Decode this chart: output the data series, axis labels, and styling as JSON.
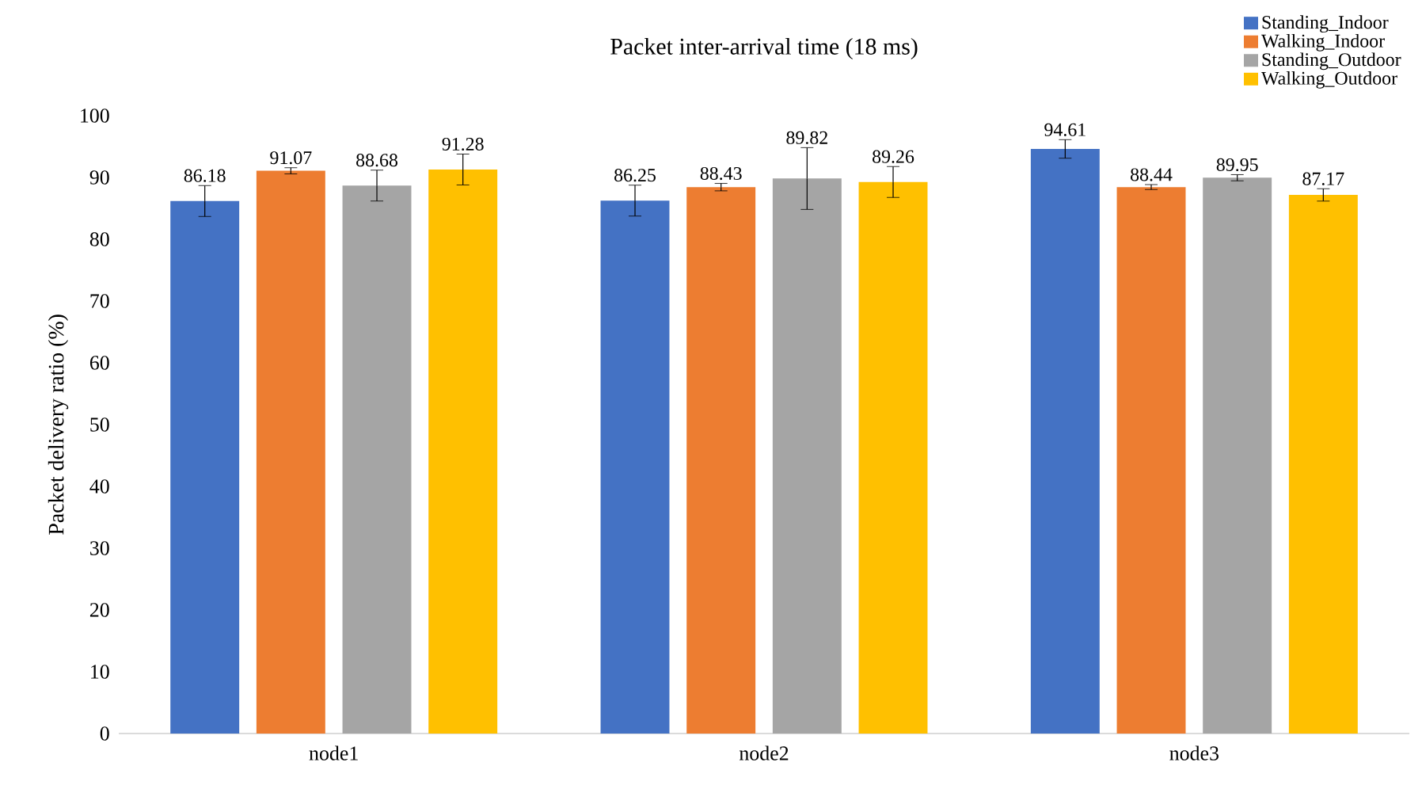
{
  "chart_data": {
    "type": "bar",
    "title": "Packet inter-arrival time (18 ms)",
    "ylabel": "Packet delivery ratio (%)",
    "categories": [
      "node1",
      "node2",
      "node3"
    ],
    "series": [
      {
        "name": "Standing_Indoor",
        "color": "#4472c4",
        "values": [
          86.18,
          86.25,
          94.61
        ],
        "errors": [
          2.5,
          2.5,
          1.5
        ]
      },
      {
        "name": "Walking_Indoor",
        "color": "#ed7d31",
        "values": [
          91.07,
          88.43,
          88.44
        ],
        "errors": [
          0.5,
          0.6,
          0.4
        ]
      },
      {
        "name": "Standing_Outdoor",
        "color": "#a5a5a5",
        "values": [
          88.68,
          89.82,
          89.95
        ],
        "errors": [
          2.5,
          5,
          0.5
        ]
      },
      {
        "name": "Walking_Outdoor",
        "color": "#ffc000",
        "values": [
          91.28,
          89.26,
          87.17
        ],
        "errors": [
          2.5,
          2.5,
          1
        ]
      }
    ],
    "ylim": [
      0,
      100
    ],
    "yticks": [
      0,
      10,
      20,
      30,
      40,
      50,
      60,
      70,
      80,
      90,
      100
    ],
    "data_labels": true,
    "legend": "top right"
  }
}
